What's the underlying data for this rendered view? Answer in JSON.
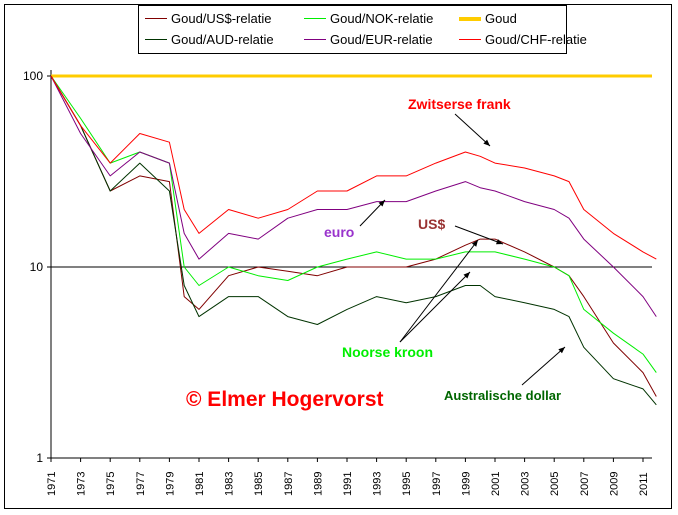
{
  "chart_data": {
    "type": "line",
    "title": "",
    "xlabel": "",
    "ylabel": "",
    "yscale": "log",
    "ylim": [
      1,
      100
    ],
    "xlim": [
      1971,
      2012
    ],
    "y_ticks": [
      "1",
      "10",
      "100"
    ],
    "x_ticks": [
      "1971",
      "1973",
      "1975",
      "1977",
      "1979",
      "1981",
      "1983",
      "1985",
      "1987",
      "1989",
      "1991",
      "1993",
      "1995",
      "1997",
      "1999",
      "2001",
      "2003",
      "2005",
      "2007",
      "2009",
      "2011"
    ],
    "x": [
      1971,
      1973,
      1975,
      1977,
      1979,
      1980,
      1981,
      1983,
      1985,
      1987,
      1989,
      1991,
      1993,
      1995,
      1997,
      1999,
      2000,
      2001,
      2003,
      2005,
      2006,
      2007,
      2009,
      2011,
      2011.9
    ],
    "series": [
      {
        "name": "Goud/US$-relatie",
        "color": "#800000",
        "width": 1,
        "values": [
          100,
          55,
          25,
          30,
          28,
          7,
          6,
          9,
          10,
          9.5,
          9,
          10,
          10,
          10,
          11,
          13,
          14,
          14,
          12,
          10,
          9,
          7,
          4,
          2.8,
          2.1
        ]
      },
      {
        "name": "Goud/NOK-relatie",
        "color": "#00ee00",
        "width": 1,
        "values": [
          100,
          60,
          35,
          40,
          35,
          10,
          8,
          10,
          9,
          8.5,
          10,
          11,
          12,
          11,
          11,
          12,
          12,
          12,
          11,
          10,
          9,
          6,
          4.5,
          3.5,
          2.8
        ]
      },
      {
        "name": "Goud",
        "color": "#ffcc00",
        "width": 3,
        "values": [
          100,
          100,
          100,
          100,
          100,
          100,
          100,
          100,
          100,
          100,
          100,
          100,
          100,
          100,
          100,
          100,
          100,
          100,
          100,
          100,
          100,
          100,
          100,
          100,
          100
        ]
      },
      {
        "name": "Goud/AUD-relatie",
        "color": "#003300",
        "width": 1,
        "values": [
          100,
          55,
          25,
          35,
          25,
          8,
          5.5,
          7,
          7,
          5.5,
          5,
          6,
          7,
          6.5,
          7,
          8,
          8,
          7,
          6.5,
          6,
          5.5,
          3.8,
          2.6,
          2.3,
          1.9
        ]
      },
      {
        "name": "Goud/EUR-relatie",
        "color": "#800080",
        "width": 1,
        "values": [
          100,
          50,
          30,
          40,
          35,
          15,
          11,
          15,
          14,
          18,
          20,
          20,
          22,
          22,
          25,
          28,
          26,
          25,
          22,
          20,
          18,
          14,
          10,
          7,
          5.5
        ]
      },
      {
        "name": "Goud/CHF-relatie",
        "color": "#ff0000",
        "width": 1,
        "values": [
          100,
          55,
          35,
          50,
          45,
          20,
          15,
          20,
          18,
          20,
          25,
          25,
          30,
          30,
          35,
          40,
          38,
          35,
          33,
          30,
          28,
          20,
          15,
          12,
          11
        ]
      }
    ],
    "legend_placement": "top",
    "annotations": [
      {
        "text": "Zwitserse frank",
        "color": "#ff0000"
      },
      {
        "text": "euro",
        "color": "#9933cc"
      },
      {
        "text": "US$",
        "color": "#993333"
      },
      {
        "text": "Noorse kroon",
        "color": "#00ee00"
      },
      {
        "text": "Australische dollar",
        "color": "#006600"
      },
      {
        "text": "© Elmer Hogervorst",
        "color": "#ff0000"
      }
    ]
  }
}
